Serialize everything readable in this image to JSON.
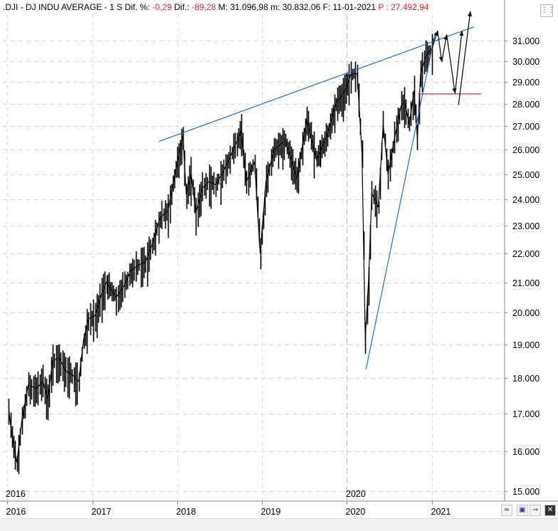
{
  "header": {
    "symbol": ".DJI",
    "sep": "-",
    "name": "DJ INDU AVERAGE",
    "sep2": "-",
    "period": "1 S",
    "dif_pct_label": "Dif. %:",
    "dif_pct_value": "-0,29",
    "dif_label": "Dif.:",
    "dif_value": "-89,28",
    "max_label": "M:",
    "max_value": "31.096,98",
    "min_label": "m:",
    "min_value": "30.832,06",
    "date_label": "F:",
    "date_value": "11-01-2021",
    "price_label": "P :",
    "price_value": "27.492,94"
  },
  "colors": {
    "trendline": "#1f6fc0",
    "support": "#e8262a",
    "header_red": "#e8262a",
    "candles": "#000000"
  },
  "icons": [
    "expand-icon",
    "chart-type-icon",
    "save-icon",
    "pin-icon",
    "tools-icon"
  ],
  "chart_data": {
    "type": "line",
    "title": "DJ INDU AVERAGE",
    "y_ticks": [
      "31.000",
      "30.000",
      "29.000",
      "28.000",
      "27.000",
      "26.000",
      "25.000",
      "24.000",
      "23.000",
      "22.000",
      "21.000",
      "20.000",
      "19.000",
      "18.000",
      "17.000",
      "16.000",
      "15.000"
    ],
    "y_tick_values": [
      31000,
      30000,
      29000,
      28000,
      27000,
      26000,
      25000,
      24000,
      23000,
      22000,
      21000,
      20000,
      19000,
      18000,
      17000,
      16000,
      15000
    ],
    "x_ticks": [
      "2016",
      "2017",
      "2018",
      "2019",
      "2020",
      "2021"
    ],
    "x_tick_dates": [
      "2016-01-01",
      "2017-01-01",
      "2018-01-01",
      "2019-01-01",
      "2020-01-01",
      "2021-01-01"
    ],
    "x_markers": [
      "2016",
      "2020"
    ],
    "scale": "log",
    "grid": true,
    "series": [
      {
        "x": [
          "2016-01-08",
          "2016-01-22",
          "2016-02-12",
          "2016-03-04",
          "2016-04-01",
          "2016-05-06",
          "2016-06-03",
          "2016-06-24",
          "2016-07-15",
          "2016-08-12",
          "2016-09-09",
          "2016-10-07",
          "2016-11-04",
          "2016-11-25",
          "2016-12-16",
          "2017-01-13",
          "2017-02-10",
          "2017-03-03",
          "2017-04-14",
          "2017-05-19",
          "2017-06-16",
          "2017-07-21",
          "2017-08-18",
          "2017-09-15",
          "2017-10-20",
          "2017-11-24",
          "2017-12-15",
          "2018-01-26",
          "2018-02-09",
          "2018-03-02",
          "2018-03-23",
          "2018-04-20",
          "2018-05-18",
          "2018-06-15",
          "2018-07-13",
          "2018-08-17",
          "2018-09-21",
          "2018-10-03",
          "2018-10-26",
          "2018-11-30",
          "2018-12-24",
          "2019-01-18",
          "2019-02-22",
          "2019-04-12",
          "2019-05-31",
          "2019-07-12",
          "2019-08-23",
          "2019-10-04",
          "2019-11-15",
          "2019-12-27",
          "2020-01-17",
          "2020-02-14",
          "2020-03-06",
          "2020-03-20",
          "2020-04-03",
          "2020-04-17",
          "2020-05-15",
          "2020-06-05",
          "2020-06-26",
          "2020-07-24",
          "2020-08-21",
          "2020-09-04",
          "2020-09-25",
          "2020-10-16",
          "2020-10-30",
          "2020-11-13",
          "2020-12-04",
          "2020-12-31",
          "2021-01-08"
        ],
        "y": [
          17100,
          16400,
          15700,
          16800,
          17800,
          17700,
          17900,
          17400,
          18500,
          18600,
          18200,
          18100,
          17900,
          19150,
          19800,
          19900,
          20600,
          21000,
          20500,
          20900,
          21400,
          21600,
          21700,
          22300,
          23300,
          23600,
          24650,
          26600,
          24200,
          25000,
          23500,
          24450,
          24700,
          24580,
          25000,
          25700,
          26500,
          26800,
          24700,
          25500,
          22000,
          24700,
          26000,
          26400,
          24800,
          27300,
          25600,
          26500,
          28000,
          28650,
          29350,
          29400,
          25860,
          19170,
          21050,
          24240,
          23700,
          27100,
          25000,
          26500,
          27900,
          28100,
          27100,
          28600,
          26500,
          29400,
          30200,
          30600,
          31100
        ]
      }
    ],
    "annotations": [
      {
        "type": "trendline",
        "label": "upper trendline",
        "from": [
          "2017-10-15",
          26350
        ],
        "to": [
          "2021-07-01",
          31700
        ]
      },
      {
        "type": "trendline",
        "label": "lower trendline",
        "from": [
          "2020-03-23",
          18250
        ],
        "to": [
          "2021-01-15",
          31400
        ]
      },
      {
        "type": "horizontal",
        "label": "support",
        "from": "2020-11-01",
        "to": "2021-08-01",
        "y": 28450
      },
      {
        "type": "projection",
        "points": [
          [
            "2021-01-01",
            30600
          ],
          [
            "2021-01-25",
            31500
          ],
          [
            "2021-02-12",
            29950
          ],
          [
            "2021-03-05",
            31300
          ],
          [
            "2021-04-10",
            28470
          ],
          [
            "2021-05-10",
            31500
          ]
        ]
      },
      {
        "type": "projection",
        "points": [
          [
            "2021-04-25",
            27950
          ],
          [
            "2021-06-15",
            32500
          ]
        ]
      }
    ]
  }
}
